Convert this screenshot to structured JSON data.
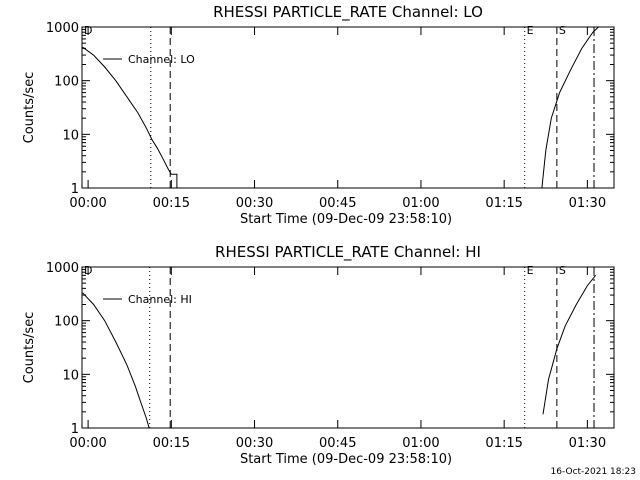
{
  "chart_data": [
    {
      "type": "line",
      "title": "RHESSI PARTICLE_RATE Channel: LO",
      "xlabel": "Start Time (09-Dec-09 23:58:10)",
      "ylabel": "Counts/sec",
      "log_y": true,
      "xlim": [
        -1.1,
        94.8
      ],
      "ylim": [
        1,
        1000
      ],
      "xticks": [
        {
          "value": 0,
          "label": "00:00"
        },
        {
          "value": 15,
          "label": "00:15"
        },
        {
          "value": 30,
          "label": "00:30"
        },
        {
          "value": 45,
          "label": "00:45"
        },
        {
          "value": 60,
          "label": "01:00"
        },
        {
          "value": 75,
          "label": "01:15"
        },
        {
          "value": 90,
          "label": "01:30"
        }
      ],
      "yticks": [
        1,
        10,
        100,
        1000
      ],
      "series": [
        {
          "name": "Channel: LO",
          "color": "#000000",
          "x": [
            -1,
            1,
            3,
            5,
            7,
            9,
            10.5,
            11.5,
            12.5,
            13.5,
            14.5,
            15,
            16,
            16,
            null,
            81.8,
            82.5,
            83.5,
            85,
            87,
            89,
            91,
            92
          ],
          "values": [
            420,
            300,
            180,
            100,
            50,
            25,
            13,
            8,
            5.5,
            3.5,
            2.2,
            1.8,
            1.8,
            1,
            null,
            1,
            5,
            20,
            60,
            160,
            400,
            800,
            1000
          ]
        }
      ],
      "markers": [
        {
          "x": 11.3,
          "style": "dotted"
        },
        {
          "x": 14.8,
          "style": "dashed"
        },
        {
          "x": 78.7,
          "style": "dotted",
          "label": "E"
        },
        {
          "x": 84.5,
          "style": "dashed",
          "label": "S"
        },
        {
          "x": 91.2,
          "style": "dashdot"
        }
      ],
      "corner_label": "D"
    },
    {
      "type": "line",
      "title": "RHESSI PARTICLE_RATE Channel: HI",
      "xlabel": "Start Time (09-Dec-09 23:58:10)",
      "ylabel": "Counts/sec",
      "log_y": true,
      "xlim": [
        -1.1,
        94.8
      ],
      "ylim": [
        1,
        1000
      ],
      "xticks": [
        {
          "value": 0,
          "label": "00:00"
        },
        {
          "value": 15,
          "label": "00:15"
        },
        {
          "value": 30,
          "label": "00:30"
        },
        {
          "value": 45,
          "label": "00:45"
        },
        {
          "value": 60,
          "label": "01:00"
        },
        {
          "value": 75,
          "label": "01:15"
        },
        {
          "value": 90,
          "label": "01:30"
        }
      ],
      "yticks": [
        1,
        10,
        100,
        1000
      ],
      "series": [
        {
          "name": "Channel: HI",
          "color": "#000000",
          "x": [
            -1,
            1,
            3,
            5,
            7,
            8.5,
            9.5,
            10.5,
            11,
            null,
            82,
            83,
            84.5,
            86,
            88,
            90,
            91.5
          ],
          "values": [
            330,
            200,
            100,
            40,
            15,
            6,
            3,
            1.5,
            1,
            null,
            1.8,
            8,
            30,
            80,
            200,
            450,
            700
          ]
        }
      ],
      "markers": [
        {
          "x": 11.1,
          "style": "dotted"
        },
        {
          "x": 14.8,
          "style": "dashed"
        },
        {
          "x": 78.7,
          "style": "dotted",
          "label": "E"
        },
        {
          "x": 84.5,
          "style": "dashed",
          "label": "S"
        },
        {
          "x": 91.2,
          "style": "dashdot"
        }
      ],
      "corner_label": "D"
    }
  ],
  "footer": "16-Oct-2021 18:23"
}
